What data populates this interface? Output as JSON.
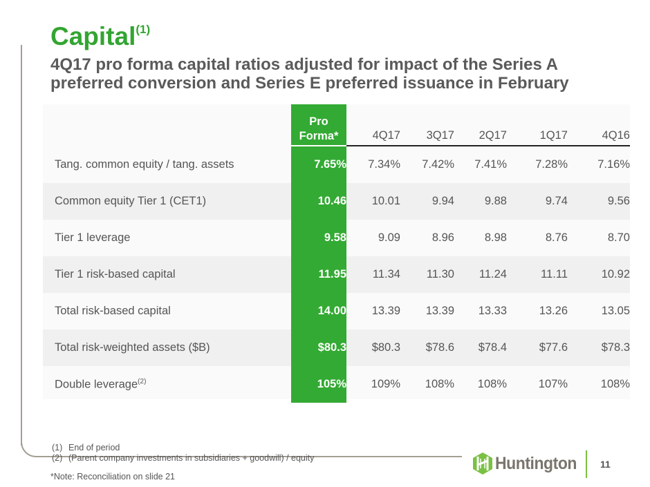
{
  "header": {
    "title": "Capital",
    "title_superscript": "(1)",
    "subtitle": "4Q17 pro forma capital ratios adjusted for impact of the Series A preferred conversion and Series E preferred issuance in February"
  },
  "table": {
    "columns": [
      "",
      "Pro Forma*",
      "4Q17",
      "3Q17",
      "2Q17",
      "1Q17",
      "4Q16"
    ],
    "pro_forma_header_line1": "Pro",
    "pro_forma_header_line2": "Forma*",
    "rows": [
      {
        "label": "Tang. common equity / tang. assets",
        "label_sup": "",
        "values": [
          "7.65%",
          "7.34%",
          "7.42%",
          "7.41%",
          "7.28%",
          "7.16%"
        ]
      },
      {
        "label": "Common equity Tier 1 (CET1)",
        "label_sup": "",
        "values": [
          "10.46",
          "10.01",
          "9.94",
          "9.88",
          "9.74",
          "9.56"
        ]
      },
      {
        "label": "Tier 1 leverage",
        "label_sup": "",
        "values": [
          "9.58",
          "9.09",
          "8.96",
          "8.98",
          "8.76",
          "8.70"
        ]
      },
      {
        "label": "Tier 1 risk-based capital",
        "label_sup": "",
        "values": [
          "11.95",
          "11.34",
          "11.30",
          "11.24",
          "11.11",
          "10.92"
        ]
      },
      {
        "label": "Total risk-based capital",
        "label_sup": "",
        "values": [
          "14.00",
          "13.39",
          "13.39",
          "13.33",
          "13.26",
          "13.05"
        ]
      },
      {
        "label": "Total risk-weighted assets ($B)",
        "label_sup": "",
        "values": [
          "$80.3",
          "$80.3",
          "$78.6",
          "$78.4",
          "$77.6",
          "$78.3"
        ]
      },
      {
        "label": "Double leverage",
        "label_sup": "(2)",
        "values": [
          "105%",
          "109%",
          "108%",
          "108%",
          "107%",
          "108%"
        ]
      }
    ]
  },
  "footnotes": [
    {
      "num": "(1)",
      "text": "End of period"
    },
    {
      "num": "(2)",
      "text": "(Parent company investments in subsidiaries + goodwill) / equity"
    }
  ],
  "note": "*Note: Reconciliation on slide 21",
  "footer": {
    "logo_text": "Huntington",
    "logo_icon": "huntington-logo-icon",
    "page_number": "11"
  },
  "colors": {
    "brand_green": "#33aa33",
    "logo_green": "#7ac143",
    "logo_gray": "#7a756c"
  }
}
